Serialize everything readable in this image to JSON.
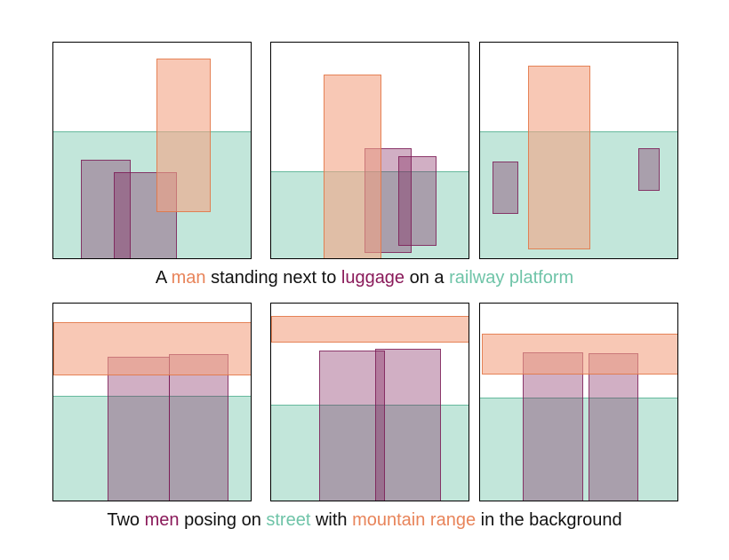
{
  "colors": {
    "person": "#f4a484",
    "object": "#7a1a55",
    "ground": "#8fd1bb",
    "ground_edge": "#66b99d",
    "grey_overlay": "#8a8a8a"
  },
  "row1": {
    "caption": [
      {
        "text": "A ",
        "role": "plain"
      },
      {
        "text": "man",
        "role": "person"
      },
      {
        "text": " standing next to ",
        "role": "plain"
      },
      {
        "text": "luggage",
        "role": "object"
      },
      {
        "text": " on a ",
        "role": "plain"
      },
      {
        "text": "railway platform",
        "role": "ground"
      }
    ]
  },
  "row2": {
    "caption": [
      {
        "text": "Two ",
        "role": "plain"
      },
      {
        "text": "men",
        "role": "object"
      },
      {
        "text": " posing on ",
        "role": "plain"
      },
      {
        "text": "street",
        "role": "ground"
      },
      {
        "text": " with ",
        "role": "plain"
      },
      {
        "text": "mountain range",
        "role": "person"
      },
      {
        "text": " in the background",
        "role": "plain"
      }
    ]
  }
}
